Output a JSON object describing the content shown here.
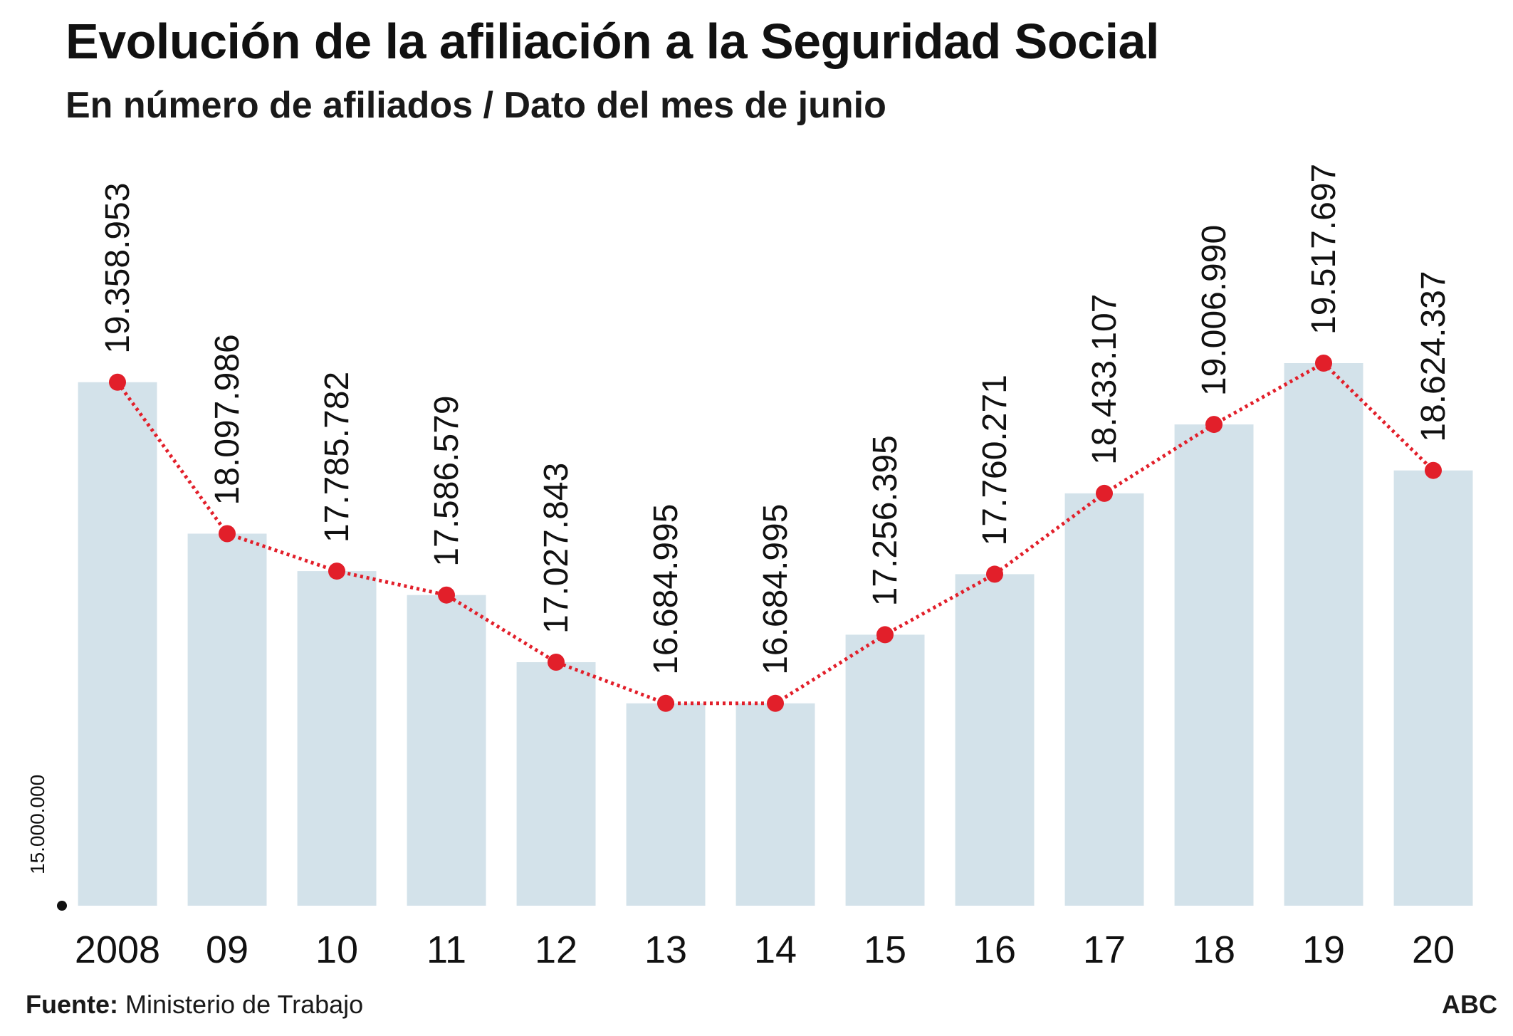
{
  "chart_data": {
    "type": "bar",
    "title": "Evolución de la afiliación a la Seguridad Social",
    "subtitle": "En número de afiliados / Dato del mes de junio",
    "categories": [
      "2008",
      "09",
      "10",
      "11",
      "12",
      "13",
      "14",
      "15",
      "16",
      "17",
      "18",
      "19",
      "20"
    ],
    "values": [
      19358953,
      18097986,
      17785782,
      17586579,
      17027843,
      16684995,
      16684995,
      17256395,
      17760271,
      18433107,
      19006990,
      19517697,
      18624337
    ],
    "value_labels": [
      "19.358.953",
      "18.097.986",
      "17.785.782",
      "17.586.579",
      "17.027.843",
      "16.684.995",
      "16.684.995",
      "17.256.395",
      "17.760.271",
      "18.433.107",
      "19.006.990",
      "19.517.697",
      "18.624.337"
    ],
    "series_overlay": {
      "type": "line",
      "style": "dotted",
      "markers": "circle"
    },
    "y_baseline_label": "15.000.000",
    "ylim": [
      15000000,
      20200000
    ],
    "xlabel": "",
    "ylabel": "",
    "grid": false,
    "colors": {
      "bar": "#d3e2ea",
      "line": "#e21f2a",
      "text": "#111111"
    }
  },
  "footer": {
    "source_label": "Fuente:",
    "source_text": "Ministerio de Trabajo",
    "brand": "ABC"
  }
}
